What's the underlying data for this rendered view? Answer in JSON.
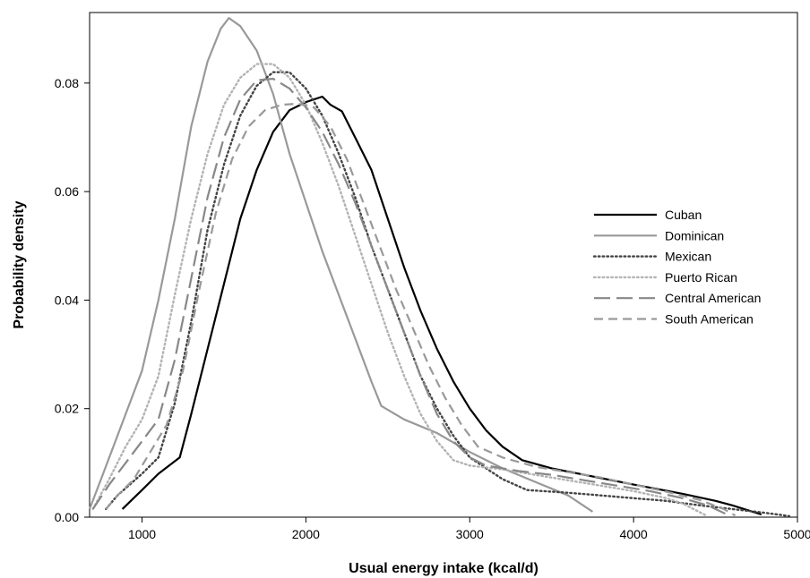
{
  "chart_data": {
    "type": "line",
    "title": "",
    "xlabel": "Usual energy intake (kcal/d)",
    "ylabel": "Probability density",
    "xlim": [
      680,
      5000
    ],
    "ylim": [
      0,
      0.093
    ],
    "x_ticks": [
      1000,
      2000,
      3000,
      4000,
      5000
    ],
    "x_tick_labels": [
      "1000",
      "2000",
      "3000",
      "4000",
      "5000"
    ],
    "y_ticks": [
      0,
      0.02,
      0.04,
      0.06,
      0.08
    ],
    "y_tick_labels": [
      "0.00",
      "0.02",
      "0.04",
      "0.06",
      "0.08"
    ],
    "grid": false,
    "legend_position": "right",
    "series": [
      {
        "name": "Cuban",
        "color": "#000000",
        "line_style": "solid",
        "points": [
          [
            880,
            0.0015
          ],
          [
            1000,
            0.005
          ],
          [
            1100,
            0.008
          ],
          [
            1230,
            0.011
          ],
          [
            1300,
            0.019
          ],
          [
            1400,
            0.031
          ],
          [
            1500,
            0.043
          ],
          [
            1600,
            0.055
          ],
          [
            1700,
            0.064
          ],
          [
            1800,
            0.071
          ],
          [
            1900,
            0.075
          ],
          [
            2000,
            0.0765
          ],
          [
            2100,
            0.0775
          ],
          [
            2150,
            0.076
          ],
          [
            2220,
            0.0748
          ],
          [
            2300,
            0.07
          ],
          [
            2400,
            0.064
          ],
          [
            2500,
            0.055
          ],
          [
            2600,
            0.046
          ],
          [
            2700,
            0.038
          ],
          [
            2800,
            0.031
          ],
          [
            2900,
            0.025
          ],
          [
            3000,
            0.02
          ],
          [
            3100,
            0.016
          ],
          [
            3200,
            0.013
          ],
          [
            3320,
            0.0105
          ],
          [
            3500,
            0.009
          ],
          [
            3700,
            0.0078
          ],
          [
            4000,
            0.006
          ],
          [
            4300,
            0.0043
          ],
          [
            4500,
            0.003
          ],
          [
            4600,
            0.0022
          ],
          [
            4780,
            0.0005
          ]
        ]
      },
      {
        "name": "Dominican",
        "color": "#999999",
        "line_style": "solid",
        "points": [
          [
            680,
            0.0015
          ],
          [
            750,
            0.007
          ],
          [
            850,
            0.015
          ],
          [
            1000,
            0.027
          ],
          [
            1100,
            0.04
          ],
          [
            1200,
            0.055
          ],
          [
            1300,
            0.072
          ],
          [
            1400,
            0.084
          ],
          [
            1480,
            0.09
          ],
          [
            1530,
            0.092
          ],
          [
            1600,
            0.0905
          ],
          [
            1700,
            0.086
          ],
          [
            1800,
            0.078
          ],
          [
            1900,
            0.067
          ],
          [
            2000,
            0.058
          ],
          [
            2100,
            0.049
          ],
          [
            2200,
            0.041
          ],
          [
            2300,
            0.033
          ],
          [
            2400,
            0.025
          ],
          [
            2460,
            0.0205
          ],
          [
            2600,
            0.018
          ],
          [
            2800,
            0.0155
          ],
          [
            3000,
            0.012
          ],
          [
            3200,
            0.009
          ],
          [
            3400,
            0.0065
          ],
          [
            3600,
            0.004
          ],
          [
            3750,
            0.001
          ]
        ]
      },
      {
        "name": "Mexican",
        "color": "#444444",
        "line_style": "dotted",
        "points": [
          [
            780,
            0.0015
          ],
          [
            850,
            0.004
          ],
          [
            1000,
            0.008
          ],
          [
            1100,
            0.011
          ],
          [
            1200,
            0.021
          ],
          [
            1300,
            0.036
          ],
          [
            1400,
            0.053
          ],
          [
            1500,
            0.065
          ],
          [
            1600,
            0.074
          ],
          [
            1700,
            0.0795
          ],
          [
            1800,
            0.082
          ],
          [
            1900,
            0.082
          ],
          [
            2000,
            0.079
          ],
          [
            2100,
            0.074
          ],
          [
            2200,
            0.067
          ],
          [
            2300,
            0.059
          ],
          [
            2400,
            0.05
          ],
          [
            2500,
            0.042
          ],
          [
            2600,
            0.034
          ],
          [
            2700,
            0.026
          ],
          [
            2800,
            0.02
          ],
          [
            2900,
            0.015
          ],
          [
            3000,
            0.011
          ],
          [
            3200,
            0.007
          ],
          [
            3350,
            0.005
          ],
          [
            3600,
            0.0045
          ],
          [
            3800,
            0.004
          ],
          [
            4000,
            0.0035
          ],
          [
            4200,
            0.003
          ],
          [
            4400,
            0.0022
          ],
          [
            4600,
            0.0015
          ],
          [
            4800,
            0.0008
          ],
          [
            4950,
            0.0002
          ]
        ]
      },
      {
        "name": "Puerto Rican",
        "color": "#b3b3b3",
        "line_style": "dotted",
        "points": [
          [
            700,
            0.0015
          ],
          [
            800,
            0.007
          ],
          [
            900,
            0.013
          ],
          [
            1000,
            0.018
          ],
          [
            1100,
            0.026
          ],
          [
            1200,
            0.041
          ],
          [
            1300,
            0.055
          ],
          [
            1400,
            0.067
          ],
          [
            1500,
            0.076
          ],
          [
            1600,
            0.081
          ],
          [
            1700,
            0.0835
          ],
          [
            1800,
            0.0835
          ],
          [
            1900,
            0.081
          ],
          [
            2000,
            0.076
          ],
          [
            2100,
            0.069
          ],
          [
            2200,
            0.061
          ],
          [
            2300,
            0.052
          ],
          [
            2400,
            0.043
          ],
          [
            2500,
            0.034
          ],
          [
            2600,
            0.026
          ],
          [
            2700,
            0.019
          ],
          [
            2800,
            0.014
          ],
          [
            2900,
            0.0105
          ],
          [
            3000,
            0.0095
          ],
          [
            3200,
            0.0088
          ],
          [
            3400,
            0.0078
          ],
          [
            3600,
            0.0068
          ],
          [
            3800,
            0.0058
          ],
          [
            4000,
            0.0048
          ],
          [
            4200,
            0.0035
          ],
          [
            4300,
            0.0025
          ],
          [
            4450,
            0.0002
          ]
        ]
      },
      {
        "name": "Central American",
        "color": "#888888",
        "line_style": "long-dash",
        "points": [
          [
            700,
            0.0015
          ],
          [
            800,
            0.006
          ],
          [
            900,
            0.01
          ],
          [
            1000,
            0.014
          ],
          [
            1100,
            0.018
          ],
          [
            1200,
            0.029
          ],
          [
            1300,
            0.044
          ],
          [
            1400,
            0.059
          ],
          [
            1500,
            0.07
          ],
          [
            1600,
            0.077
          ],
          [
            1700,
            0.0805
          ],
          [
            1800,
            0.0808
          ],
          [
            1900,
            0.079
          ],
          [
            2000,
            0.0755
          ],
          [
            2100,
            0.071
          ],
          [
            2200,
            0.065
          ],
          [
            2300,
            0.058
          ],
          [
            2400,
            0.05
          ],
          [
            2500,
            0.042
          ],
          [
            2600,
            0.034
          ],
          [
            2700,
            0.026
          ],
          [
            2800,
            0.019
          ],
          [
            2900,
            0.014
          ],
          [
            3000,
            0.011
          ],
          [
            3100,
            0.0095
          ],
          [
            3300,
            0.0085
          ],
          [
            3500,
            0.0078
          ],
          [
            3700,
            0.0068
          ],
          [
            3900,
            0.0058
          ],
          [
            4100,
            0.0048
          ],
          [
            4300,
            0.0035
          ],
          [
            4450,
            0.0022
          ],
          [
            4570,
            0.0005
          ]
        ]
      },
      {
        "name": "South American",
        "color": "#999999",
        "line_style": "dashed",
        "points": [
          [
            780,
            0.0015
          ],
          [
            850,
            0.004
          ],
          [
            950,
            0.007
          ],
          [
            1050,
            0.012
          ],
          [
            1150,
            0.017
          ],
          [
            1250,
            0.027
          ],
          [
            1350,
            0.042
          ],
          [
            1450,
            0.056
          ],
          [
            1550,
            0.066
          ],
          [
            1650,
            0.072
          ],
          [
            1750,
            0.075
          ],
          [
            1850,
            0.076
          ],
          [
            1950,
            0.0762
          ],
          [
            2050,
            0.0755
          ],
          [
            2150,
            0.072
          ],
          [
            2250,
            0.066
          ],
          [
            2350,
            0.058
          ],
          [
            2450,
            0.05
          ],
          [
            2550,
            0.042
          ],
          [
            2650,
            0.035
          ],
          [
            2750,
            0.028
          ],
          [
            2850,
            0.022
          ],
          [
            2950,
            0.017
          ],
          [
            3050,
            0.013
          ],
          [
            3200,
            0.011
          ],
          [
            3400,
            0.0093
          ],
          [
            3600,
            0.0083
          ],
          [
            3800,
            0.0073
          ],
          [
            4000,
            0.006
          ],
          [
            4200,
            0.0047
          ],
          [
            4400,
            0.0032
          ],
          [
            4550,
            0.0015
          ],
          [
            4620,
            0.0003
          ]
        ]
      }
    ]
  }
}
